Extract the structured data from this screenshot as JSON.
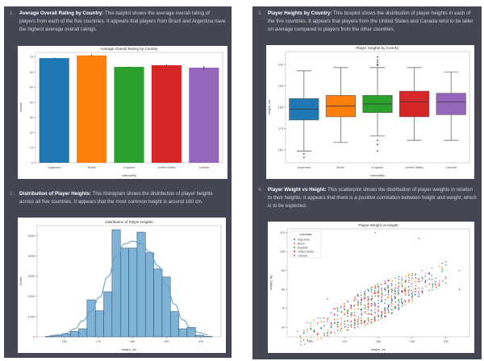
{
  "sections": [
    {
      "number": "1.",
      "title": "Average Overall Rating by Country:",
      "body": "This barplot shows the average overall rating of players from each of the five countries. It appears that players from Brazil and Argentina have the highest average overall ratings."
    },
    {
      "number": "2.",
      "title": "Distribution of Player Heights:",
      "body": "This histogram shows the distribution of player heights across all five countries. It appears that the most common height is around 180 cm."
    },
    {
      "number": "3.",
      "title": "Player Heights by Country:",
      "body": "This boxplot shows the distribution of player heights in each of the five countries. It appears that players from the United States and Canada tend to be taller on average compared to players from the other countries."
    },
    {
      "number": "4.",
      "title": "Player Weight vs Height:",
      "body": "This scatterplot shows the distribution of player weights in relation to their heights. It appears that there is a positive correlation between height and weight, which is to be expected."
    }
  ],
  "colors": {
    "panel_bg": "#444654",
    "Argentina": "#1f77b4",
    "Brazil": "#ff7f0e",
    "England": "#2ca02c",
    "United States": "#d62728",
    "Canada": "#9467bd",
    "hist": "#7fb3d5"
  },
  "chart_data": [
    {
      "id": "bar",
      "type": "bar",
      "title": "Average Overall Rating by Country",
      "xlabel": "nationality",
      "ylabel": "overall",
      "categories": [
        "Argentina",
        "Brazil",
        "England",
        "United States",
        "Canada"
      ],
      "values": [
        69.2,
        71.0,
        63.4,
        64.5,
        62.9
      ],
      "error": [
        0.4,
        0.6,
        0.3,
        0.5,
        1.2
      ],
      "ylim": [
        0,
        73
      ],
      "yticks": [
        0,
        10,
        20,
        30,
        40,
        50,
        60,
        70
      ],
      "grid": false
    },
    {
      "id": "hist",
      "type": "bar",
      "title": "Distribution of Player Heights",
      "xlabel": "height_cm",
      "ylabel": "Count",
      "bin_start": 154.4,
      "bin_width": 2.45,
      "values": [
        20,
        60,
        150,
        270,
        400,
        1830,
        1290,
        2230,
        5300,
        4390,
        4390,
        5180,
        4160,
        3360,
        2960,
        1250,
        400,
        470,
        80,
        20
      ],
      "kde": true,
      "xlim": [
        152,
        206
      ],
      "xticks": [
        160,
        170,
        180,
        190,
        200
      ],
      "ylim": [
        0,
        5500
      ],
      "yticks": [
        0,
        1000,
        2000,
        3000,
        4000,
        5000
      ],
      "grid": false
    },
    {
      "id": "box",
      "type": "box",
      "title": "Player Heights by Country",
      "xlabel": "nationality",
      "ylabel": "height_cm",
      "categories": [
        "Argentina",
        "Brazil",
        "England",
        "United States",
        "Canada"
      ],
      "boxes": [
        {
          "whislo": 159.5,
          "q1": 174,
          "med": 179,
          "q3": 184,
          "whishi": 197,
          "fliers": [
            158.2,
            156.5
          ]
        },
        {
          "whislo": 163.5,
          "q1": 175.5,
          "med": 180.5,
          "q3": 185.5,
          "whishi": 198.5,
          "fliers": []
        },
        {
          "whislo": 166.5,
          "q1": 177.5,
          "med": 181.5,
          "q3": 185.5,
          "whishi": 198.5,
          "fliers": [
            164.5,
            162.5,
            159.5,
            199.5,
            200,
            201,
            202,
            203.5
          ]
        },
        {
          "whislo": 164.5,
          "q1": 175.5,
          "med": 182.5,
          "q3": 187.5,
          "whishi": 198.5,
          "fliers": []
        },
        {
          "whislo": 164.5,
          "q1": 176.5,
          "med": 182.5,
          "q3": 186.5,
          "whishi": 196.5,
          "fliers": []
        }
      ],
      "ylim": [
        154,
        206
      ],
      "yticks": [
        160,
        170,
        180,
        190,
        200
      ],
      "grid": false
    },
    {
      "id": "scatter",
      "type": "scatter",
      "title": "Player Weight vs Height",
      "xlabel": "height_cm",
      "ylabel": "weight_kg",
      "legend_title": "nationality",
      "legend": [
        "Argentina",
        "Brazil",
        "England",
        "United States",
        "Canada"
      ],
      "legend_position": "top-left",
      "xlim": [
        153,
        207
      ],
      "xticks": [
        160,
        170,
        180,
        190,
        200
      ],
      "ylim": [
        55,
        112
      ],
      "yticks": [
        60,
        70,
        80,
        90,
        100,
        110
      ],
      "trend": {
        "slope": 0.78,
        "intercept": -67,
        "spread": 7
      },
      "height_range": [
        157,
        200
      ],
      "notable_points": [
        {
          "x": 179,
          "y": 110,
          "series": "Canada"
        },
        {
          "x": 192,
          "y": 107,
          "series": "United States"
        },
        {
          "x": 204,
          "y": 90,
          "series": "Canada"
        },
        {
          "x": 204,
          "y": 80,
          "series": "England"
        },
        {
          "x": 165,
          "y": 75,
          "series": "Canada"
        },
        {
          "x": 156,
          "y": 58,
          "series": "Canada"
        },
        {
          "x": 158,
          "y": 57,
          "series": "Argentina"
        }
      ],
      "grid": false
    }
  ]
}
